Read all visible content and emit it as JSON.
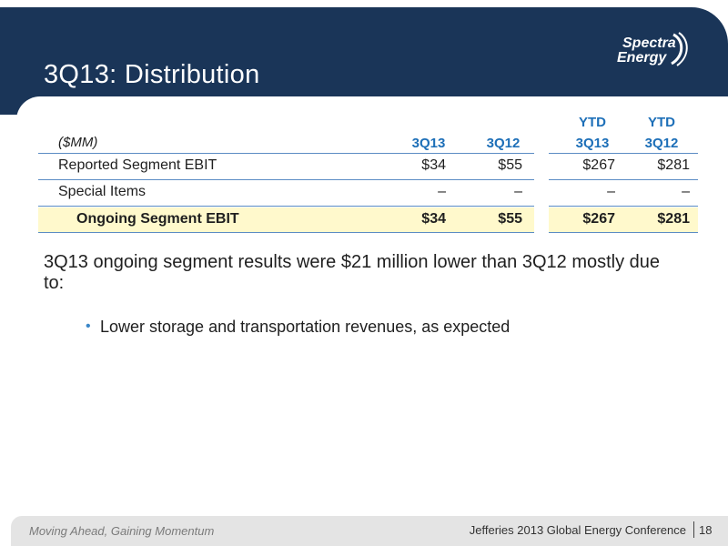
{
  "slide": {
    "title": "3Q13: Distribution",
    "logo": {
      "line1": "Spectra",
      "line2": "Energy"
    }
  },
  "table": {
    "unit_label": "($MM)",
    "columns": [
      {
        "line1": "",
        "line2": "3Q13"
      },
      {
        "line1": "",
        "line2": "3Q12"
      },
      {
        "line1": "YTD",
        "line2": "3Q13"
      },
      {
        "line1": "YTD",
        "line2": "3Q12"
      }
    ],
    "rows": [
      {
        "label": "Reported Segment EBIT",
        "values": [
          "$34",
          "$55",
          "$267",
          "$281"
        ]
      },
      {
        "label": "Special Items",
        "values": [
          "–",
          "–",
          "–",
          "–"
        ]
      },
      {
        "label": "Ongoing Segment EBIT",
        "values": [
          "$34",
          "$55",
          "$267",
          "$281"
        ]
      }
    ]
  },
  "summary": "3Q13 ongoing segment results were $21 million lower than 3Q12 mostly due to:",
  "bullets": [
    "Lower storage and transportation revenues, as expected"
  ],
  "footer": {
    "tagline": "Moving Ahead, Gaining Momentum",
    "conference": "Jefferies 2013 Global Energy Conference",
    "page": "18"
  },
  "colors": {
    "header": "#1a3558",
    "accent_blue": "#1d6fb8",
    "highlight": "#fff9cc"
  }
}
